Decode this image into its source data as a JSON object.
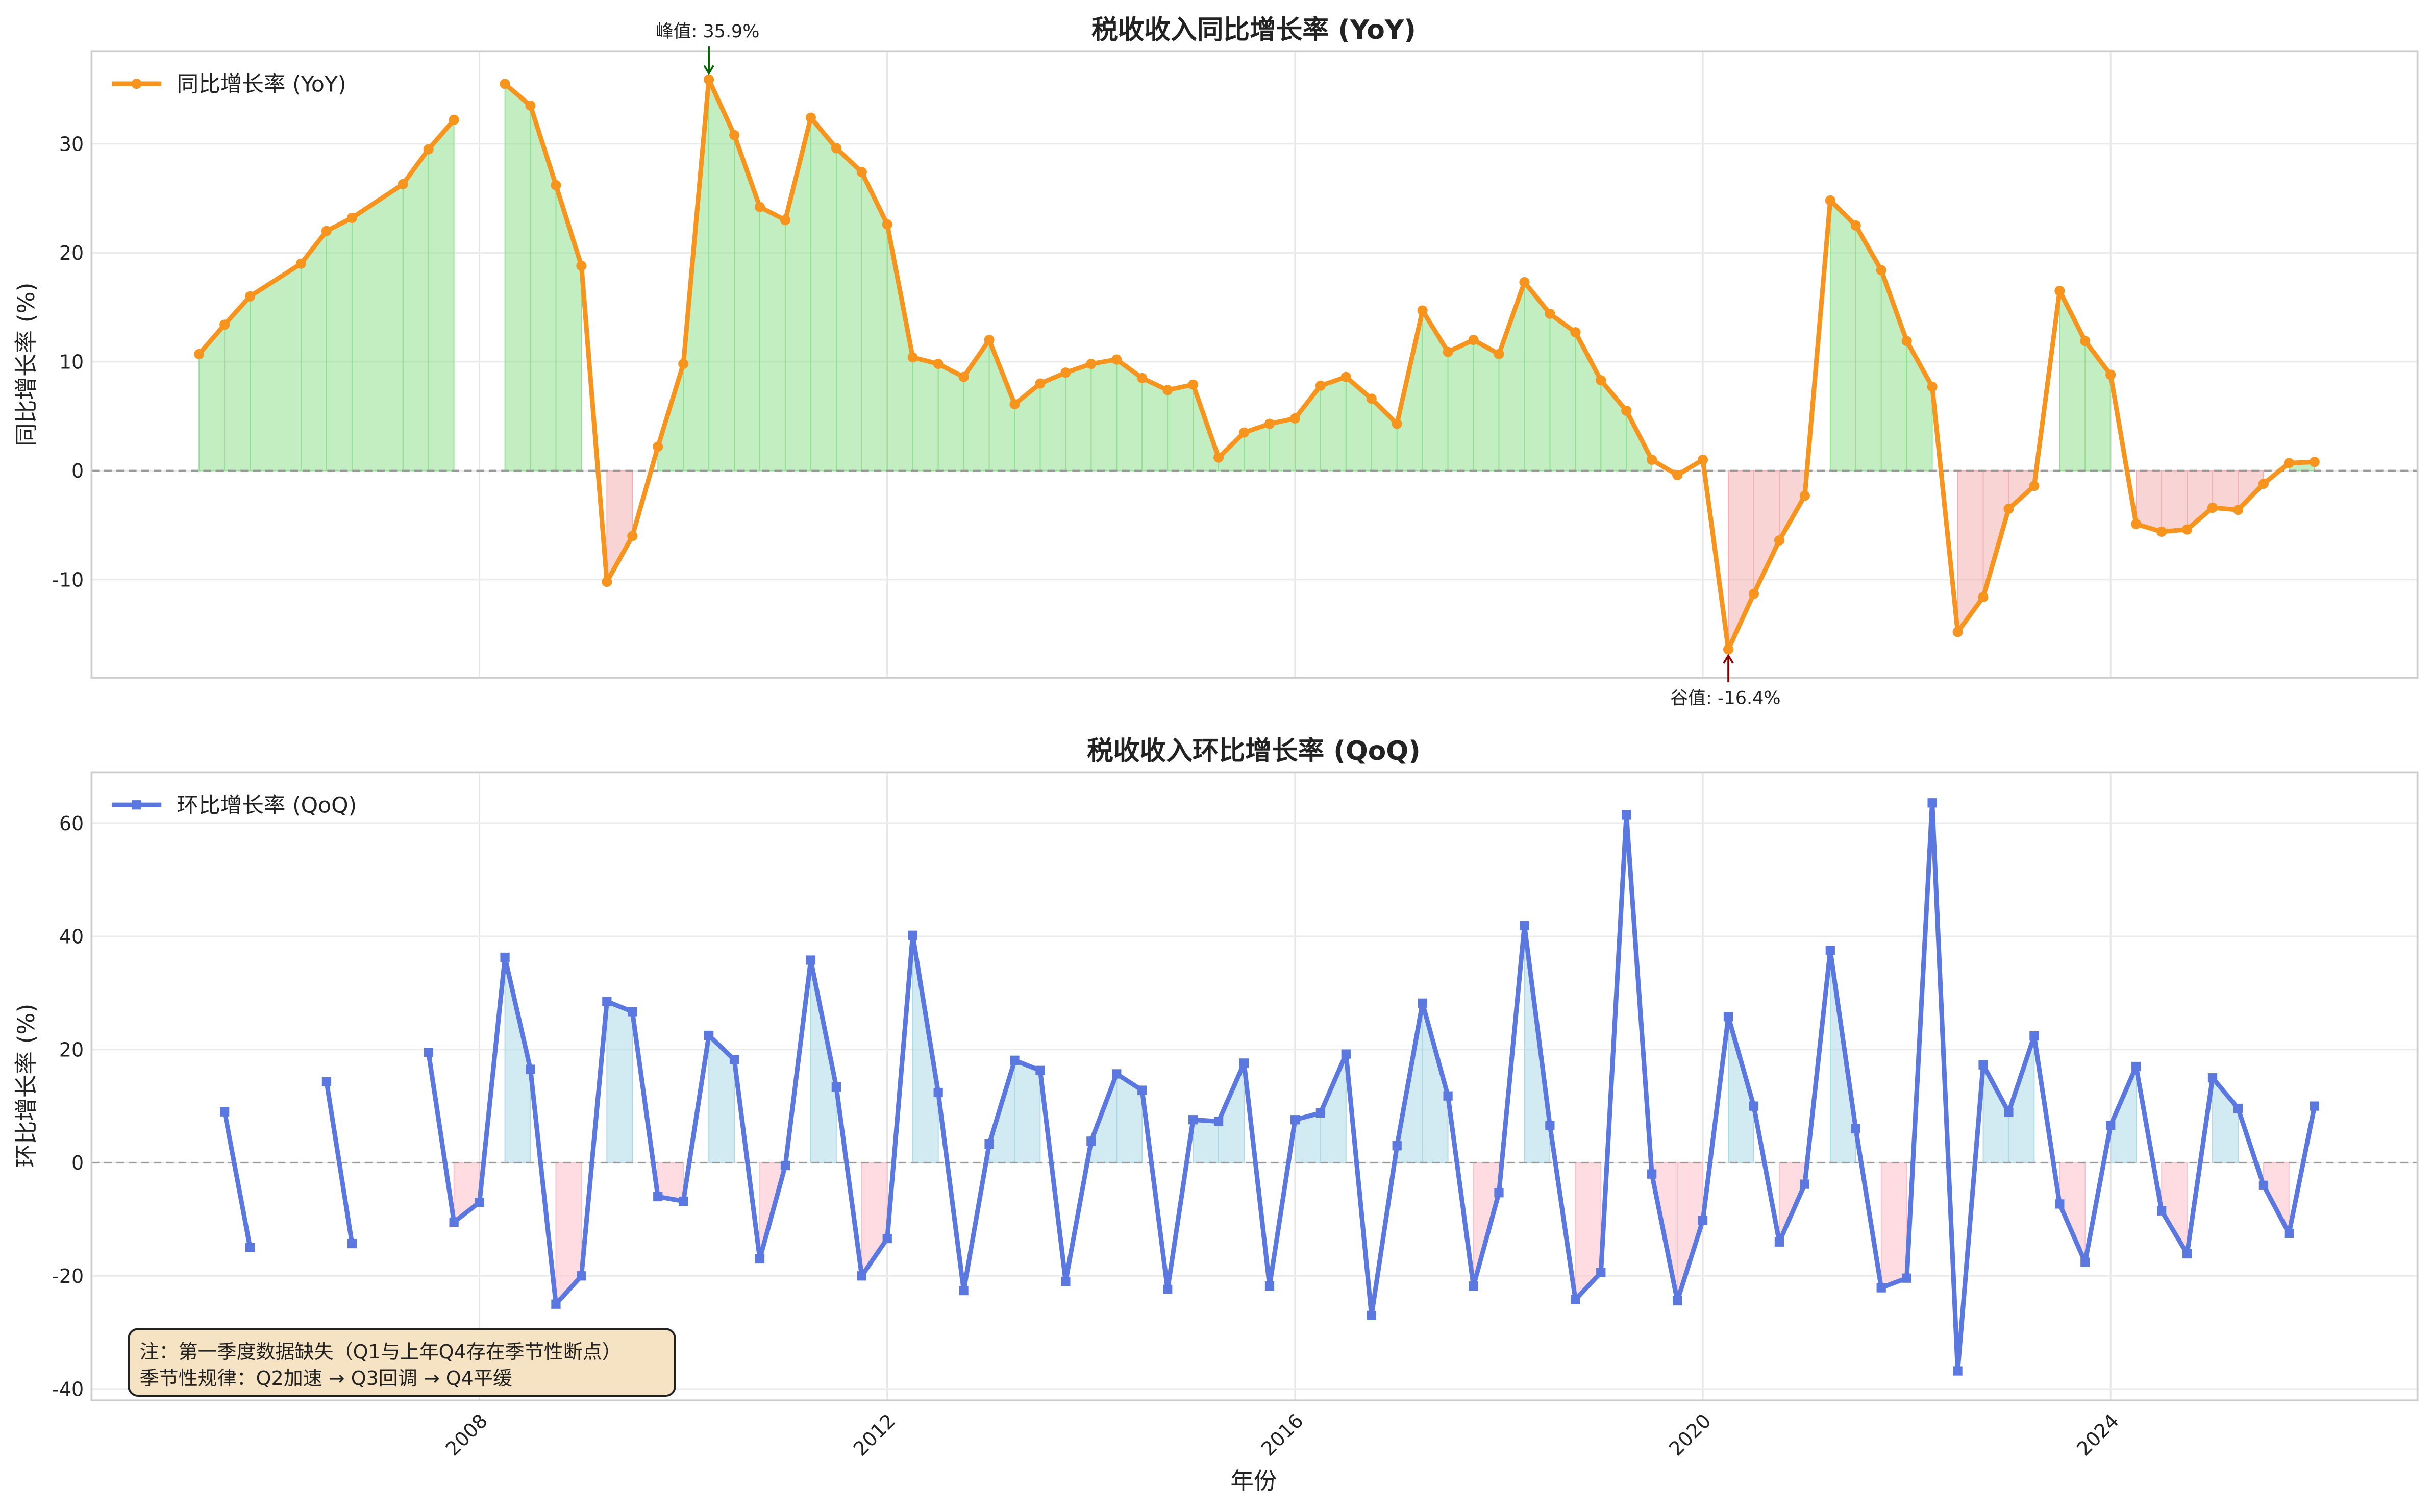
{
  "colors": {
    "yoy": "#f7941d",
    "qoq": "#5b78e0",
    "pos_fill_yoy": "#90e090",
    "neg_fill_yoy": "#f4b0b0",
    "pos_fill_qoq": "#add8e6",
    "neg_fill_qoq": "#ffc0cb",
    "peak_arrow": "#006400",
    "trough_arrow": "#8b0000",
    "note_bg": "#f5e3c3"
  },
  "chart_data": [
    {
      "type": "line",
      "title": "税收收入同比增长率 (YoY)",
      "xlabel": "",
      "ylabel": "同比增长率 (%)",
      "legend": {
        "label": "同比增长率 (YoY)",
        "placement": "top-left"
      },
      "ylim": [
        -19,
        38.5
      ],
      "yticks": [
        -10,
        0,
        10,
        20,
        30
      ],
      "grid": true,
      "annotations": [
        {
          "text": "峰值: 35.9%",
          "x": "2010Q2",
          "y": 35.9,
          "type": "peak"
        },
        {
          "text": "谷值: -16.4%",
          "x": "2020Q2",
          "y": -16.4,
          "type": "trough"
        }
      ],
      "x": [
        "2005Q2",
        "2005Q3",
        "2005Q4",
        "2006Q2",
        "2006Q3",
        "2006Q4",
        "2007Q2",
        "2007Q3",
        "2007Q4",
        "2008Q1",
        "2008Q2",
        "2008Q3",
        "2008Q4",
        "2009Q1",
        "2009Q2",
        "2009Q3",
        "2009Q4",
        "2010Q1",
        "2010Q2",
        "2010Q3",
        "2010Q4",
        "2011Q1",
        "2011Q2",
        "2011Q3",
        "2011Q4",
        "2012Q1",
        "2012Q2",
        "2012Q3",
        "2012Q4",
        "2013Q1",
        "2013Q2",
        "2013Q3",
        "2013Q4",
        "2014Q1",
        "2014Q2",
        "2014Q3",
        "2014Q4",
        "2015Q1",
        "2015Q2",
        "2015Q3",
        "2015Q4",
        "2016Q1",
        "2016Q2",
        "2016Q3",
        "2016Q4",
        "2017Q1",
        "2017Q2",
        "2017Q3",
        "2017Q4",
        "2018Q1",
        "2018Q2",
        "2018Q3",
        "2018Q4",
        "2019Q1",
        "2019Q2",
        "2019Q3",
        "2019Q4",
        "2020Q1",
        "2020Q2",
        "2020Q3",
        "2020Q4",
        "2021Q1",
        "2021Q2",
        "2021Q3",
        "2021Q4",
        "2022Q1",
        "2022Q2",
        "2022Q3",
        "2022Q4",
        "2023Q1",
        "2023Q2",
        "2023Q3",
        "2023Q4",
        "2024Q1",
        "2024Q2",
        "2024Q3",
        "2024Q4",
        "2025Q1",
        "2025Q2",
        "2025Q3",
        "2025Q4",
        "2026Q1"
      ],
      "values": [
        10.7,
        13.4,
        16.0,
        19.0,
        22.0,
        23.2,
        26.3,
        29.5,
        32.2,
        null,
        35.5,
        33.5,
        26.2,
        18.8,
        -10.2,
        -6.0,
        2.2,
        9.8,
        35.9,
        30.8,
        24.2,
        23.0,
        32.4,
        29.6,
        27.4,
        22.6,
        10.4,
        9.8,
        8.6,
        12.0,
        6.1,
        8.0,
        9.0,
        9.8,
        10.2,
        8.5,
        7.4,
        7.9,
        1.2,
        3.5,
        4.3,
        4.8,
        7.8,
        8.6,
        6.6,
        4.3,
        14.7,
        10.9,
        12.0,
        10.7,
        17.3,
        14.4,
        12.7,
        8.3,
        5.5,
        1.0,
        -0.4,
        1.0,
        -16.4,
        -11.3,
        -6.4,
        -2.3,
        24.8,
        22.5,
        18.4,
        11.9,
        7.7,
        -14.8,
        -11.6,
        -3.5,
        -1.4,
        16.5,
        11.9,
        8.8,
        -4.9,
        -5.6,
        -5.4,
        -3.4,
        -3.6,
        -1.2,
        0.7,
        0.8
      ]
    },
    {
      "type": "line",
      "title": "税收收入环比增长率 (QoQ)",
      "xlabel": "年份",
      "ylabel": "环比增长率 (%)",
      "legend": {
        "label": "环比增长率 (QoQ)",
        "placement": "top-left"
      },
      "ylim": [
        -42,
        69
      ],
      "yticks": [
        -40,
        -20,
        0,
        20,
        40,
        60
      ],
      "xticks": [
        "2008",
        "2012",
        "2016",
        "2020",
        "2024"
      ],
      "grid": true,
      "note": [
        "注：第一季度数据缺失（Q1与上年Q4存在季节性断点）",
        "季节性规律：Q2加速 → Q3回调 → Q4平缓"
      ],
      "values": [
        null,
        9.0,
        -15.0,
        null,
        14.3,
        -14.3,
        null,
        19.5,
        -10.5,
        -7.0,
        36.3,
        16.5,
        -25.0,
        -20.0,
        28.5,
        26.7,
        -6.0,
        -6.8,
        22.5,
        18.2,
        -17.0,
        -0.5,
        35.8,
        13.4,
        -20.0,
        -13.4,
        40.2,
        12.4,
        -22.6,
        3.3,
        18.1,
        16.3,
        -21.0,
        3.8,
        15.7,
        12.8,
        -22.4,
        7.6,
        7.3,
        17.6,
        -21.8,
        7.6,
        8.8,
        19.2,
        -27.0,
        3.0,
        28.2,
        11.8,
        -21.8,
        -5.3,
        41.9,
        6.6,
        -24.2,
        -19.4,
        61.5,
        -2.0,
        -24.4,
        -10.2,
        25.8,
        10.0,
        -14.0,
        -3.8,
        37.5,
        6.0,
        -22.1,
        -20.4,
        63.6,
        -36.8,
        17.3,
        8.9,
        22.4,
        -7.3,
        -17.6,
        6.6,
        17.0,
        -8.5,
        -16.1,
        15.0,
        9.6,
        -4.0,
        -12.5,
        10.0
      ]
    }
  ]
}
